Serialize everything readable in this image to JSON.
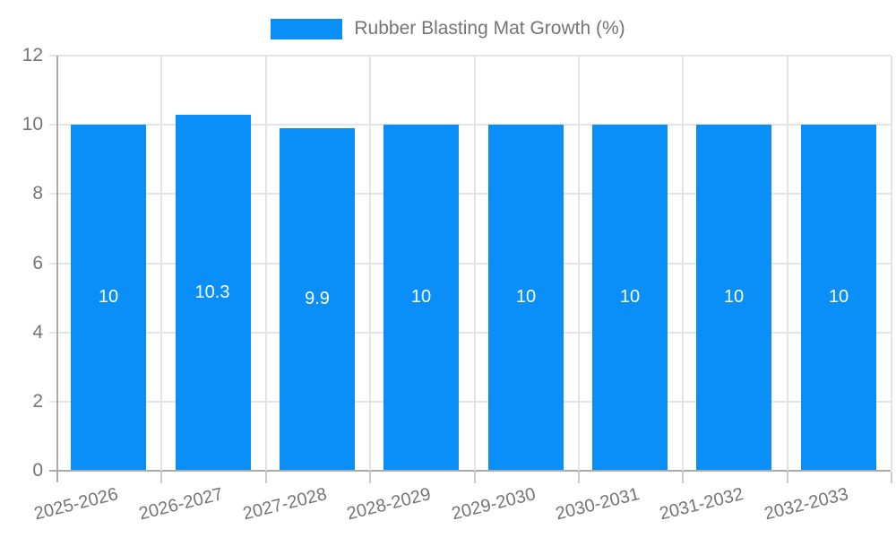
{
  "legend": {
    "label": "Rubber Blasting Mat Growth (%)"
  },
  "chart_data": {
    "type": "bar",
    "title": "Rubber Blasting Mat Growth (%)",
    "categories": [
      "2025-2026",
      "2026-2027",
      "2027-2028",
      "2028-2029",
      "2029-2030",
      "2030-2031",
      "2031-2032",
      "2032-2033"
    ],
    "values": [
      10,
      10.3,
      9.9,
      10,
      10,
      10,
      10,
      10
    ],
    "bar_labels": [
      "10",
      "10.3",
      "9.9",
      "10",
      "10",
      "10",
      "10",
      "10"
    ],
    "xlabel": "",
    "ylabel": "",
    "ylim": [
      0,
      12
    ],
    "yticks": [
      0,
      2,
      4,
      6,
      8,
      10,
      12
    ],
    "grid": true,
    "legend_position": "top-center",
    "colors": {
      "bar": "#0a8ff8",
      "grid": "#e4e4e4",
      "axis": "#ababab",
      "tick": "#cccccc",
      "text": "#757575",
      "bar_label": "#ffffff",
      "background": "#ffffff"
    }
  }
}
